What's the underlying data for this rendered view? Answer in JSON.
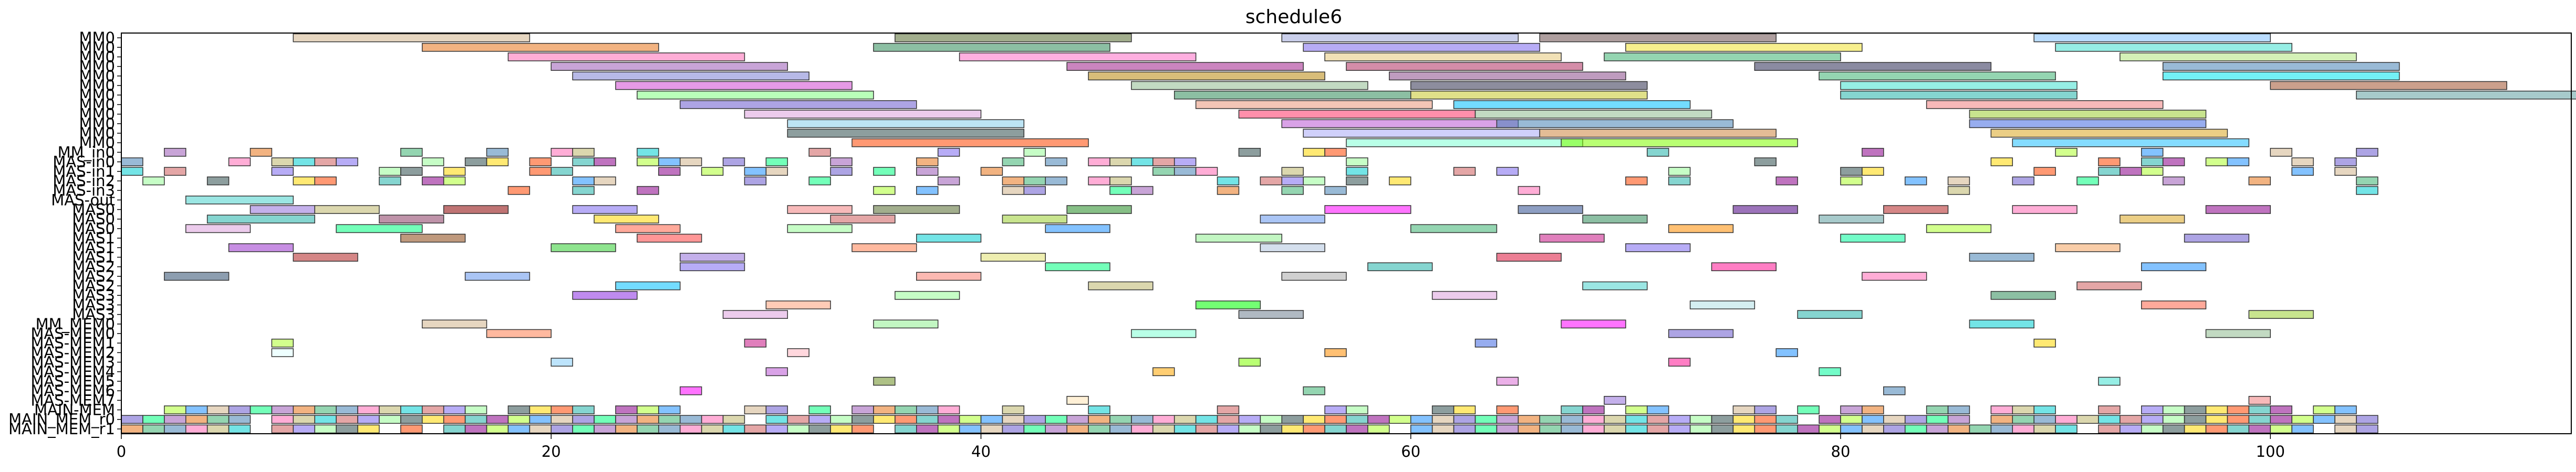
{
  "chart_data": {
    "type": "gantt",
    "title": "schedule6",
    "xlabel": "",
    "ylabel": "",
    "xlim": [
      0,
      114
    ],
    "xticks": [
      0,
      20,
      40,
      60,
      80,
      100
    ],
    "grid": false,
    "rows": [
      "MM0",
      "MM0",
      "MM0",
      "MM0",
      "MM0",
      "MM0",
      "MM0",
      "MM0",
      "MM0",
      "MM0",
      "MM0",
      "MM0",
      "MM_in0",
      "MAS-in0",
      "MAS-in1",
      "MAS-in2",
      "MAS-in3",
      "MAS-out",
      "MAS0",
      "MAS0",
      "MAS0",
      "MAS1",
      "MAS1",
      "MAS1",
      "MAS2",
      "MAS2",
      "MAS2",
      "MAS3",
      "MAS3",
      "MAS3",
      "MM_MEM0",
      "MAS-MEM0",
      "MAS-MEM1",
      "MAS-MEM2",
      "MAS-MEM3",
      "MAS-MEM4",
      "MAS-MEM5",
      "MAS-MEM6",
      "MAS-MEM7",
      "MAIN-MEM",
      "MAIN_MEM_r0",
      "MAIN_MEM_r1"
    ],
    "tasks": [
      {
        "row": 0,
        "start": 8,
        "end": 19,
        "color": "#d2b48c"
      },
      {
        "row": 0,
        "start": 36,
        "end": 47,
        "color": "#556b2f"
      },
      {
        "row": 0,
        "start": 54,
        "end": 65,
        "color": "#9fa8da"
      },
      {
        "row": 0,
        "start": 66,
        "end": 77,
        "color": "#6b4f4f"
      },
      {
        "row": 0,
        "start": 89,
        "end": 100,
        "color": "#7fbfff"
      },
      {
        "row": 1,
        "start": 14,
        "end": 25,
        "color": "#e8751a"
      },
      {
        "row": 1,
        "start": 35,
        "end": 46,
        "color": "#2e8b57"
      },
      {
        "row": 1,
        "start": 55,
        "end": 66,
        "color": "#7b68ee"
      },
      {
        "row": 1,
        "start": 70,
        "end": 81,
        "color": "#f0e130"
      },
      {
        "row": 1,
        "start": 90,
        "end": 101,
        "color": "#40e0d0"
      },
      {
        "row": 2,
        "start": 18,
        "end": 29,
        "color": "#ff69b4"
      },
      {
        "row": 2,
        "start": 39,
        "end": 50,
        "color": "#ff6ec7"
      },
      {
        "row": 2,
        "start": 56,
        "end": 67,
        "color": "#e6c87a"
      },
      {
        "row": 2,
        "start": 69,
        "end": 80,
        "color": "#3cb371"
      },
      {
        "row": 2,
        "start": 93,
        "end": 104,
        "color": "#b0e57c"
      },
      {
        "row": 3,
        "start": 20,
        "end": 31,
        "color": "#9b59b6"
      },
      {
        "row": 3,
        "start": 44,
        "end": 55,
        "color": "#a0208a"
      },
      {
        "row": 3,
        "start": 57,
        "end": 68,
        "color": "#b03060"
      },
      {
        "row": 3,
        "start": 76,
        "end": 87,
        "color": "#2c2c54"
      },
      {
        "row": 3,
        "start": 95,
        "end": 106,
        "color": "#4682b4"
      },
      {
        "row": 4,
        "start": 21,
        "end": 32,
        "color": "#7b7fd4"
      },
      {
        "row": 4,
        "start": 45,
        "end": 56,
        "color": "#b8860b"
      },
      {
        "row": 4,
        "start": 59,
        "end": 70,
        "color": "#8b4a8b"
      },
      {
        "row": 4,
        "start": 79,
        "end": 90,
        "color": "#3cb371"
      },
      {
        "row": 4,
        "start": 95,
        "end": 106,
        "color": "#00e5ee"
      },
      {
        "row": 5,
        "start": 23,
        "end": 34,
        "color": "#d147d1"
      },
      {
        "row": 5,
        "start": 47,
        "end": 58,
        "color": "#8fbc8f"
      },
      {
        "row": 5,
        "start": 60,
        "end": 71,
        "color": "#2f2f4f"
      },
      {
        "row": 5,
        "start": 80,
        "end": 91,
        "color": "#40e0d0"
      },
      {
        "row": 5,
        "start": 100,
        "end": 111,
        "color": "#a0522d"
      },
      {
        "row": 6,
        "start": 24,
        "end": 35,
        "color": "#7fff7f"
      },
      {
        "row": 6,
        "start": 49,
        "end": 60,
        "color": "#2e8b57"
      },
      {
        "row": 6,
        "start": 60,
        "end": 71,
        "color": "#c7c728"
      },
      {
        "row": 6,
        "start": 80,
        "end": 91,
        "color": "#20b2aa"
      },
      {
        "row": 6,
        "start": 104,
        "end": 115,
        "color": "#5f9ea0"
      },
      {
        "row": 7,
        "start": 26,
        "end": 37,
        "color": "#6a5acd"
      },
      {
        "row": 7,
        "start": 50,
        "end": 61,
        "color": "#e9967a"
      },
      {
        "row": 7,
        "start": 62,
        "end": 73,
        "color": "#00bfff"
      },
      {
        "row": 7,
        "start": 84,
        "end": 95,
        "color": "#f08080"
      },
      {
        "row": 8,
        "start": 29,
        "end": 40,
        "color": "#dda0dd"
      },
      {
        "row": 8,
        "start": 52,
        "end": 63,
        "color": "#ff3366"
      },
      {
        "row": 8,
        "start": 63,
        "end": 74,
        "color": "#8fbc8f"
      },
      {
        "row": 8,
        "start": 86,
        "end": 97,
        "color": "#9acd32"
      },
      {
        "row": 9,
        "start": 31,
        "end": 42,
        "color": "#87ceeb"
      },
      {
        "row": 9,
        "start": 54,
        "end": 65,
        "color": "#ba55d3"
      },
      {
        "row": 9,
        "start": 64,
        "end": 75,
        "color": "#4682b4"
      },
      {
        "row": 9,
        "start": 86,
        "end": 97,
        "color": "#4169e1"
      },
      {
        "row": 10,
        "start": 31,
        "end": 42,
        "color": "#2f4f4f"
      },
      {
        "row": 10,
        "start": 55,
        "end": 66,
        "color": "#a9a9f5"
      },
      {
        "row": 10,
        "start": 66,
        "end": 77,
        "color": "#cd853f"
      },
      {
        "row": 10,
        "start": 87,
        "end": 98,
        "color": "#daa520"
      },
      {
        "row": 11,
        "start": 34,
        "end": 45,
        "color": "#ff4500"
      },
      {
        "row": 11,
        "start": 57,
        "end": 68,
        "color": "#7fffd4"
      },
      {
        "row": 11,
        "start": 67,
        "end": 78,
        "color": "#7fff00"
      },
      {
        "row": 11,
        "start": 88,
        "end": 99,
        "color": "#20c0ff"
      },
      {
        "row": 17,
        "start": 3,
        "end": 8,
        "color": "#48d1cc"
      },
      {
        "row": 18,
        "start": 6,
        "end": 9,
        "color": "#9370db"
      },
      {
        "row": 18,
        "start": 9,
        "end": 12,
        "color": "#bdb76b"
      },
      {
        "row": 18,
        "start": 15,
        "end": 18,
        "color": "#8b0000"
      },
      {
        "row": 18,
        "start": 21,
        "end": 24,
        "color": "#7b68ee"
      },
      {
        "row": 18,
        "start": 31,
        "end": 34,
        "color": "#f08080"
      },
      {
        "row": 18,
        "start": 35,
        "end": 39,
        "color": "#556b2f"
      },
      {
        "row": 18,
        "start": 44,
        "end": 47,
        "color": "#228b22"
      },
      {
        "row": 18,
        "start": 56,
        "end": 60,
        "color": "#ff00ff"
      },
      {
        "row": 18,
        "start": 65,
        "end": 68,
        "color": "#2f4f8f"
      },
      {
        "row": 18,
        "start": 75,
        "end": 78,
        "color": "#4b0082"
      },
      {
        "row": 18,
        "start": 82,
        "end": 85,
        "color": "#b22222"
      },
      {
        "row": 18,
        "start": 88,
        "end": 91,
        "color": "#ff69b4"
      },
      {
        "row": 18,
        "start": 97,
        "end": 100,
        "color": "#8b008b"
      },
      {
        "row": 19,
        "start": 4,
        "end": 9,
        "color": "#20b2aa"
      },
      {
        "row": 19,
        "start": 12,
        "end": 15,
        "color": "#8b3a62"
      },
      {
        "row": 19,
        "start": 22,
        "end": 25,
        "color": "#ffd700"
      },
      {
        "row": 19,
        "start": 33,
        "end": 36,
        "color": "#cd5c5c"
      },
      {
        "row": 19,
        "start": 41,
        "end": 44,
        "color": "#9acd32"
      },
      {
        "row": 19,
        "start": 53,
        "end": 56,
        "color": "#6495ed"
      },
      {
        "row": 19,
        "start": 68,
        "end": 71,
        "color": "#2e8b57"
      },
      {
        "row": 19,
        "start": 79,
        "end": 82,
        "color": "#5f9ea0"
      },
      {
        "row": 19,
        "start": 93,
        "end": 96,
        "color": "#daa520"
      },
      {
        "row": 20,
        "start": 3,
        "end": 6,
        "color": "#dda0dd"
      },
      {
        "row": 20,
        "start": 10,
        "end": 14,
        "color": "#00ff7f"
      },
      {
        "row": 20,
        "start": 23,
        "end": 26,
        "color": "#ff6347"
      },
      {
        "row": 20,
        "start": 31,
        "end": 34,
        "color": "#98fb98"
      },
      {
        "row": 20,
        "start": 43,
        "end": 46,
        "color": "#1e90ff"
      },
      {
        "row": 20,
        "start": 60,
        "end": 64,
        "color": "#3cb371"
      },
      {
        "row": 20,
        "start": 72,
        "end": 75,
        "color": "#ff8c00"
      },
      {
        "row": 20,
        "start": 84,
        "end": 87,
        "color": "#adff2f"
      },
      {
        "row": 21,
        "start": 13,
        "end": 16,
        "color": "#8b4513"
      },
      {
        "row": 21,
        "start": 24,
        "end": 27,
        "color": "#ff4040"
      },
      {
        "row": 21,
        "start": 37,
        "end": 40,
        "color": "#00ced1"
      },
      {
        "row": 21,
        "start": 50,
        "end": 54,
        "color": "#90ee90"
      },
      {
        "row": 21,
        "start": 66,
        "end": 69,
        "color": "#c71585"
      },
      {
        "row": 21,
        "start": 80,
        "end": 83,
        "color": "#00fa9a"
      },
      {
        "row": 21,
        "start": 96,
        "end": 99,
        "color": "#6a5acd"
      },
      {
        "row": 22,
        "start": 5,
        "end": 8,
        "color": "#9932cc"
      },
      {
        "row": 22,
        "start": 20,
        "end": 23,
        "color": "#32cd32"
      },
      {
        "row": 22,
        "start": 34,
        "end": 37,
        "color": "#ff7f50"
      },
      {
        "row": 22,
        "start": 53,
        "end": 56,
        "color": "#b0c4de"
      },
      {
        "row": 22,
        "start": 70,
        "end": 73,
        "color": "#7b68ee"
      },
      {
        "row": 22,
        "start": 90,
        "end": 93,
        "color": "#f4a460"
      },
      {
        "row": 23,
        "start": 8,
        "end": 11,
        "color": "#b22222"
      },
      {
        "row": 23,
        "start": 26,
        "end": 29,
        "color": "#9370db"
      },
      {
        "row": 23,
        "start": 40,
        "end": 43,
        "color": "#e0e070"
      },
      {
        "row": 23,
        "start": 64,
        "end": 67,
        "color": "#dc143c"
      },
      {
        "row": 23,
        "start": 86,
        "end": 89,
        "color": "#4682b4"
      },
      {
        "row": 24,
        "start": 26,
        "end": 29,
        "color": "#7b68ee"
      },
      {
        "row": 24,
        "start": 43,
        "end": 46,
        "color": "#00ff7f"
      },
      {
        "row": 24,
        "start": 58,
        "end": 61,
        "color": "#20b2aa"
      },
      {
        "row": 24,
        "start": 74,
        "end": 77,
        "color": "#ff1493"
      },
      {
        "row": 24,
        "start": 94,
        "end": 97,
        "color": "#1e90ff"
      },
      {
        "row": 25,
        "start": 2,
        "end": 5,
        "color": "#2f4f6f"
      },
      {
        "row": 25,
        "start": 16,
        "end": 19,
        "color": "#6495ed"
      },
      {
        "row": 25,
        "start": 37,
        "end": 40,
        "color": "#fa8072"
      },
      {
        "row": 25,
        "start": 54,
        "end": 57,
        "color": "#a9a9a9"
      },
      {
        "row": 25,
        "start": 81,
        "end": 84,
        "color": "#ff69b4"
      },
      {
        "row": 26,
        "start": 23,
        "end": 26,
        "color": "#00bfff"
      },
      {
        "row": 26,
        "start": 45,
        "end": 48,
        "color": "#bdb76b"
      },
      {
        "row": 26,
        "start": 68,
        "end": 71,
        "color": "#48d1cc"
      },
      {
        "row": 26,
        "start": 91,
        "end": 94,
        "color": "#cd5c5c"
      },
      {
        "row": 27,
        "start": 21,
        "end": 24,
        "color": "#8a2be2"
      },
      {
        "row": 27,
        "start": 36,
        "end": 39,
        "color": "#98fb98"
      },
      {
        "row": 27,
        "start": 61,
        "end": 64,
        "color": "#dda0dd"
      },
      {
        "row": 27,
        "start": 87,
        "end": 90,
        "color": "#2e8b57"
      },
      {
        "row": 28,
        "start": 30,
        "end": 33,
        "color": "#ffa07a"
      },
      {
        "row": 28,
        "start": 50,
        "end": 53,
        "color": "#00ff00"
      },
      {
        "row": 28,
        "start": 73,
        "end": 76,
        "color": "#b0e0e6"
      },
      {
        "row": 28,
        "start": 94,
        "end": 97,
        "color": "#ff6347"
      },
      {
        "row": 29,
        "start": 28,
        "end": 31,
        "color": "#dda0dd"
      },
      {
        "row": 29,
        "start": 52,
        "end": 55,
        "color": "#708090"
      },
      {
        "row": 29,
        "start": 78,
        "end": 81,
        "color": "#20b2aa"
      },
      {
        "row": 29,
        "start": 99,
        "end": 102,
        "color": "#9acd32"
      },
      {
        "row": 30,
        "start": 14,
        "end": 17,
        "color": "#d2b48c"
      },
      {
        "row": 30,
        "start": 35,
        "end": 38,
        "color": "#90ee90"
      },
      {
        "row": 30,
        "start": 67,
        "end": 70,
        "color": "#ff00ff"
      },
      {
        "row": 30,
        "start": 86,
        "end": 89,
        "color": "#00ced1"
      },
      {
        "row": 31,
        "start": 17,
        "end": 20,
        "color": "#ff7f50"
      },
      {
        "row": 31,
        "start": 47,
        "end": 50,
        "color": "#7fffd4"
      },
      {
        "row": 31,
        "start": 72,
        "end": 75,
        "color": "#6a5acd"
      },
      {
        "row": 31,
        "start": 97,
        "end": 100,
        "color": "#8fbc8f"
      },
      {
        "row": 32,
        "start": 7,
        "end": 8,
        "color": "#adff2f"
      },
      {
        "row": 32,
        "start": 29,
        "end": 30,
        "color": "#c71585"
      },
      {
        "row": 32,
        "start": 63,
        "end": 64,
        "color": "#4169e1"
      },
      {
        "row": 32,
        "start": 89,
        "end": 90,
        "color": "#ffd700"
      },
      {
        "row": 33,
        "start": 7,
        "end": 8,
        "color": "#e0ffff"
      },
      {
        "row": 33,
        "start": 31,
        "end": 32,
        "color": "#ffb6c1"
      },
      {
        "row": 33,
        "start": 56,
        "end": 57,
        "color": "#ff8c00"
      },
      {
        "row": 33,
        "start": 77,
        "end": 78,
        "color": "#1e90ff"
      },
      {
        "row": 34,
        "start": 20,
        "end": 21,
        "color": "#87cefa"
      },
      {
        "row": 34,
        "start": 52,
        "end": 53,
        "color": "#7fff00"
      },
      {
        "row": 34,
        "start": 72,
        "end": 73,
        "color": "#ff1493"
      },
      {
        "row": 35,
        "start": 30,
        "end": 31,
        "color": "#ba55d3"
      },
      {
        "row": 35,
        "start": 48,
        "end": 49,
        "color": "#ffa500"
      },
      {
        "row": 35,
        "start": 79,
        "end": 80,
        "color": "#00fa9a"
      },
      {
        "row": 36,
        "start": 35,
        "end": 36,
        "color": "#6b8e23"
      },
      {
        "row": 36,
        "start": 64,
        "end": 65,
        "color": "#da70d6"
      },
      {
        "row": 36,
        "start": 92,
        "end": 93,
        "color": "#40e0d0"
      },
      {
        "row": 37,
        "start": 26,
        "end": 27,
        "color": "#ff00ff"
      },
      {
        "row": 37,
        "start": 55,
        "end": 56,
        "color": "#3cb371"
      },
      {
        "row": 37,
        "start": 82,
        "end": 83,
        "color": "#4682b4"
      },
      {
        "row": 38,
        "start": 44,
        "end": 45,
        "color": "#ffe4b5"
      },
      {
        "row": 38,
        "start": 69,
        "end": 70,
        "color": "#9370db"
      },
      {
        "row": 38,
        "start": 99,
        "end": 100,
        "color": "#f08080"
      }
    ],
    "strip_rows": {
      "rows": [
        12,
        13,
        14,
        15,
        16,
        39,
        40,
        41
      ],
      "cell": 1,
      "palette": [
        "#9b59b6",
        "#e8751a",
        "#3cb371",
        "#4682b4",
        "#ff69b4",
        "#bdb76b",
        "#00ced1",
        "#cd5c5c",
        "#7b68ee",
        "#98fb98",
        "#2f4f4f",
        "#ffd700",
        "#ff4500",
        "#20b2aa",
        "#8b008b",
        "#adff2f",
        "#1e90ff",
        "#d2b48c",
        "#6a5acd",
        "#00ff7f"
      ],
      "density": [
        0.18,
        0.35,
        0.32,
        0.28,
        0.12,
        0.55,
        0.95,
        0.95
      ]
    }
  }
}
